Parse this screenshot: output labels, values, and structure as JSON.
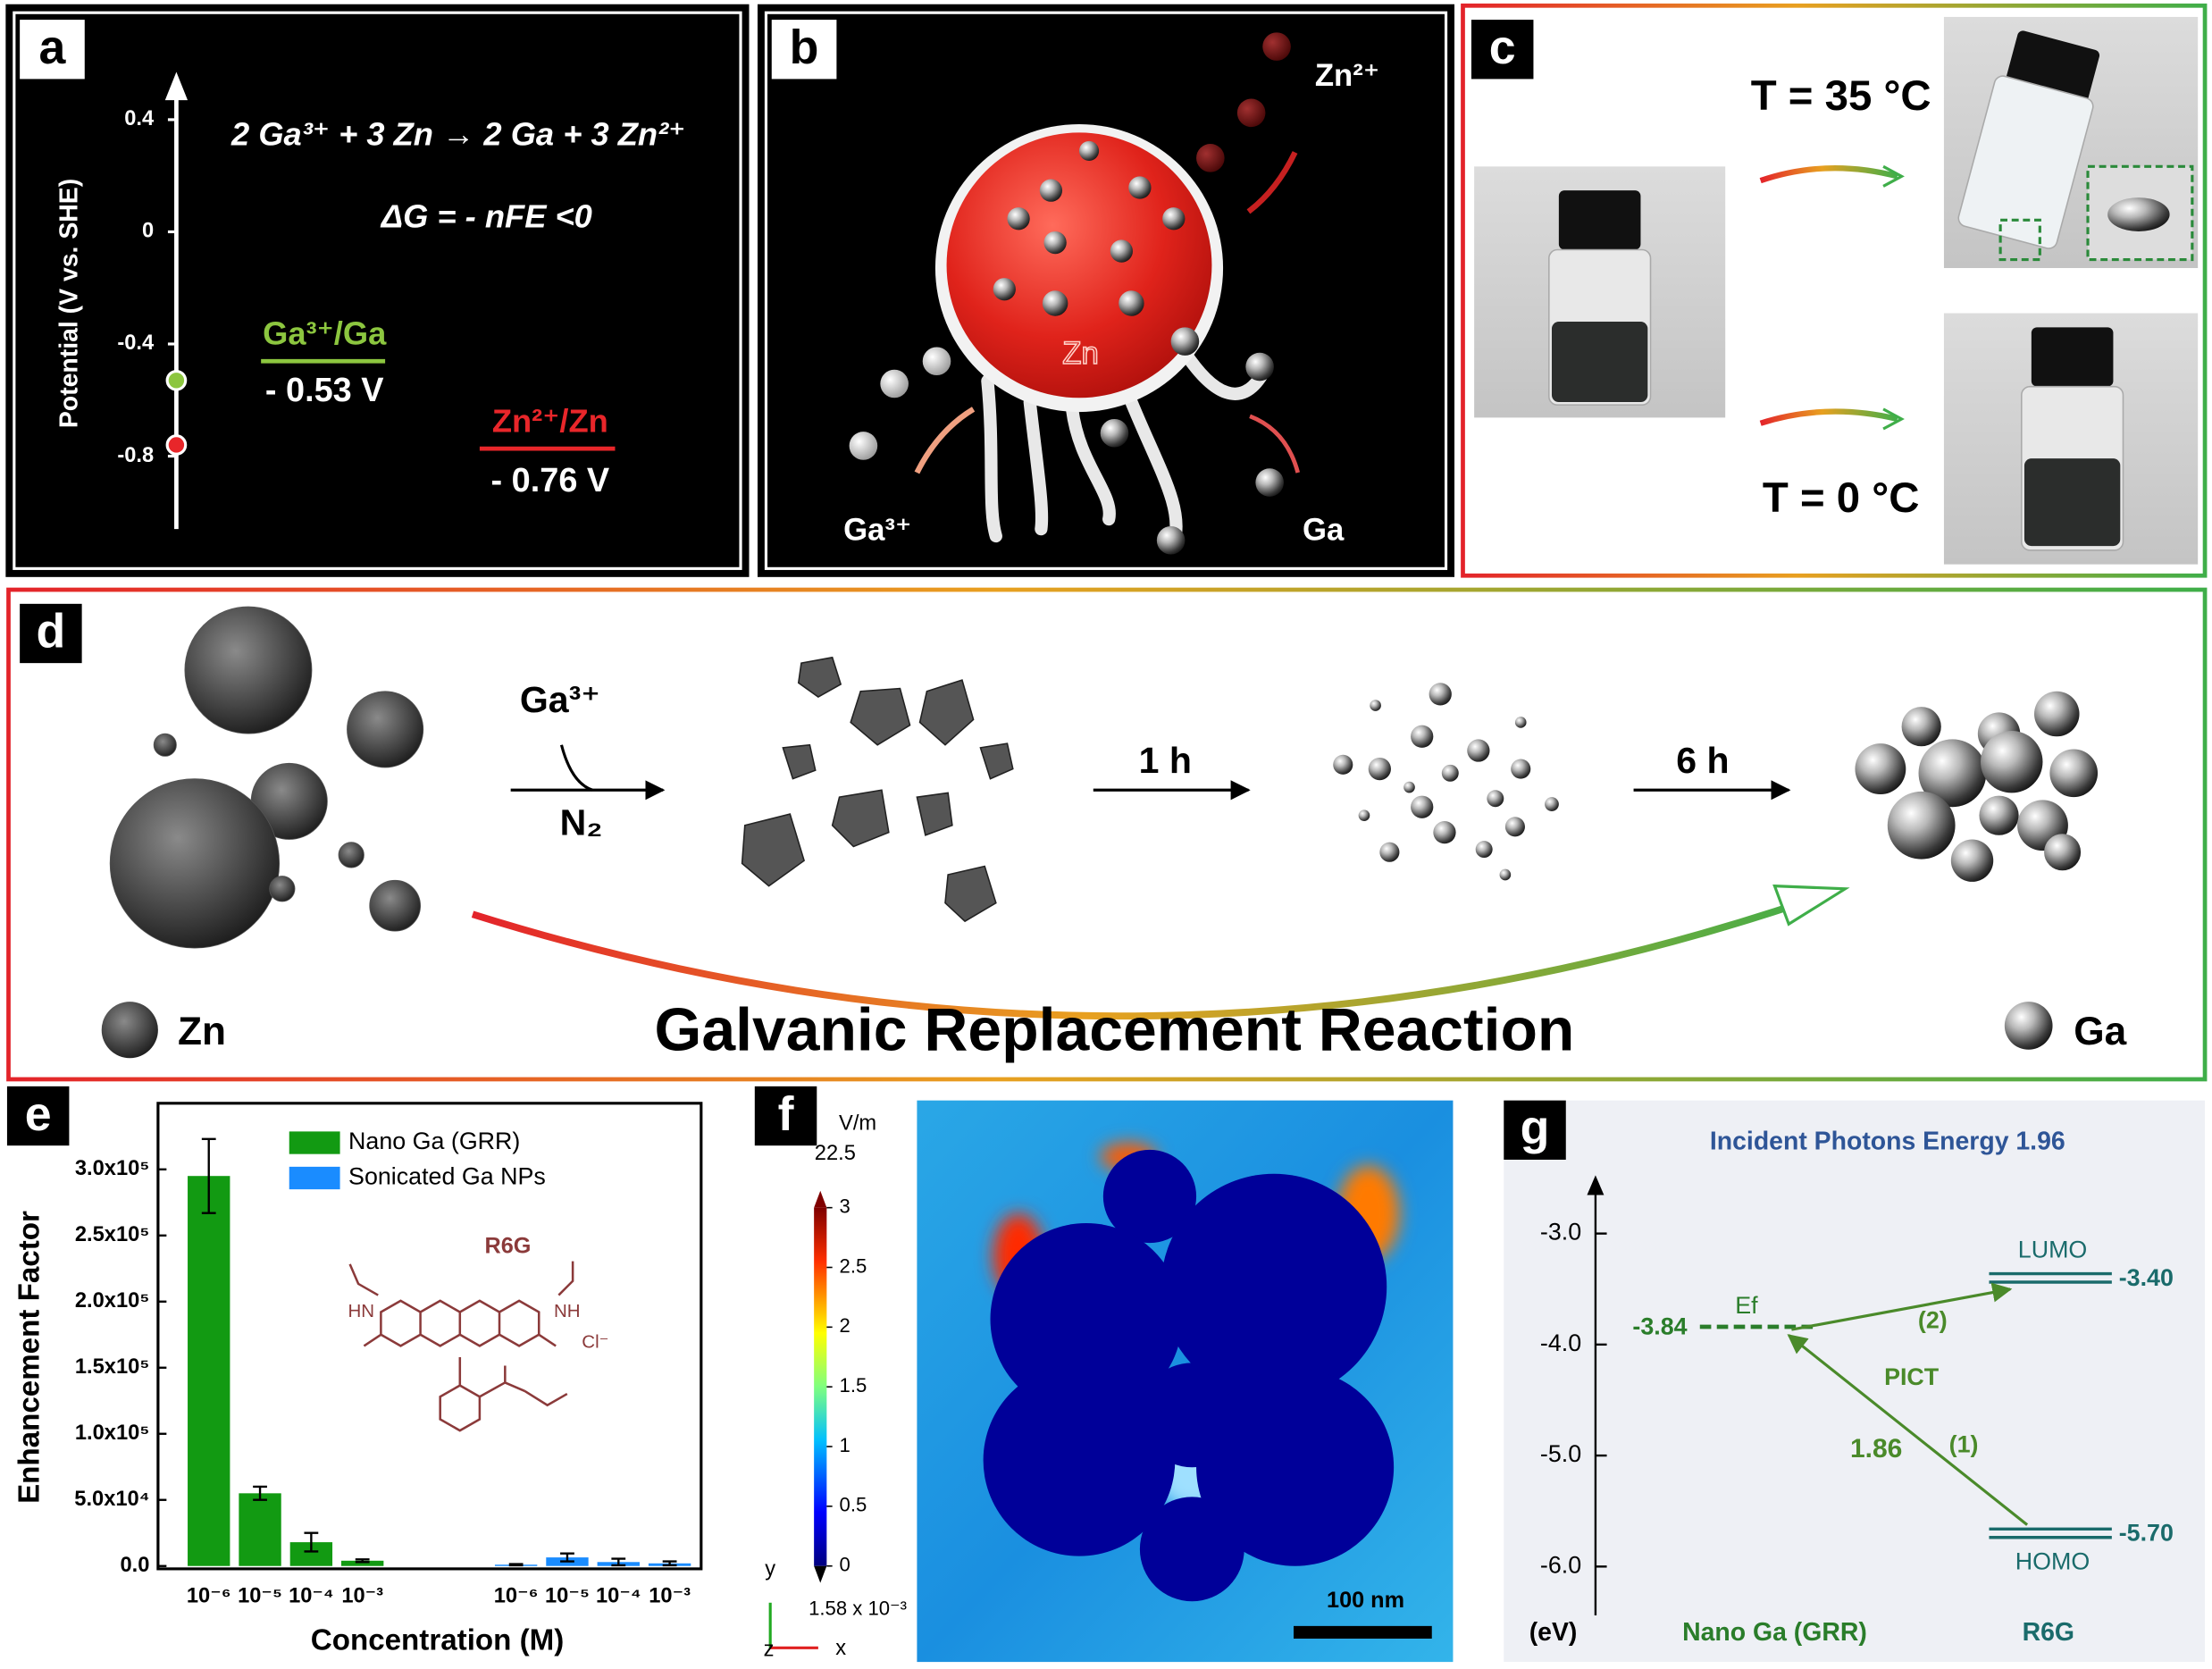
{
  "chart_data": [
    {
      "type": "potential-scale",
      "panel": "a",
      "ylabel": "Potential (V vs. SHE)",
      "ylim": [
        -1.06,
        0.55
      ],
      "yticks": [
        0.4,
        0,
        -0.4,
        -0.8
      ],
      "equation": "2 Ga³⁺ + 3 Zn → 2 Ga + 3 Zn²⁺",
      "free_energy": "ΔG = - nFE <0",
      "couples": [
        {
          "label": "Ga³⁺/Ga",
          "value": -0.53,
          "value_label": "- 0.53 V",
          "color": "#8cc63f"
        },
        {
          "label": "Zn²⁺/Zn",
          "value": -0.76,
          "value_label": "- 0.76 V",
          "color": "#e8262a"
        }
      ]
    },
    {
      "type": "bar",
      "panel": "e",
      "xlabel": "Concentration (M)",
      "ylabel": "Enhancement Factor",
      "categories": [
        "10⁻⁶",
        "10⁻⁵",
        "10⁻⁴",
        "10⁻³",
        null,
        null,
        "10⁻⁶",
        "10⁻⁵",
        "10⁻⁴",
        "10⁻³"
      ],
      "series": [
        {
          "name": "Nano Ga (GRR)",
          "color": "#129a12",
          "values": [
            295000,
            55000,
            18000,
            4000,
            null,
            null,
            null,
            null,
            null,
            null
          ],
          "errors": [
            28000,
            5000,
            7000,
            1000,
            null,
            null,
            null,
            null,
            null,
            null
          ]
        },
        {
          "name": "Sonicated Ga NPs",
          "color": "#1a8cff",
          "values": [
            null,
            null,
            null,
            null,
            null,
            null,
            1000,
            6500,
            3000,
            2000
          ],
          "errors": [
            null,
            null,
            null,
            null,
            null,
            null,
            500,
            3000,
            2500,
            1500
          ]
        }
      ],
      "ylim": [
        0,
        350000
      ],
      "yticks": [
        {
          "value": 0,
          "label": "0.0"
        },
        {
          "value": 50000,
          "label": "5.0x10⁴"
        },
        {
          "value": 100000,
          "label": "1.0x10⁵"
        },
        {
          "value": 150000,
          "label": "1.5x10⁵"
        },
        {
          "value": 200000,
          "label": "2.0x10⁵"
        },
        {
          "value": 250000,
          "label": "2.5x10⁵"
        },
        {
          "value": 300000,
          "label": "3.0x10⁵"
        }
      ],
      "molecule": {
        "name": "R6G",
        "atoms": [
          "HN",
          "NH",
          "Cl⁻"
        ]
      }
    },
    {
      "type": "energy-levels",
      "panel": "g",
      "title": "Incident Photons Energy 1.96",
      "ylim": [
        -6.44,
        -2.5
      ],
      "yticks": [
        {
          "value": -3,
          "label": "-3.0"
        },
        {
          "value": -4,
          "label": "-4.0"
        },
        {
          "value": -5,
          "label": "-5.0"
        },
        {
          "value": -6,
          "label": "-6.0"
        }
      ],
      "unit": "(eV)",
      "levels": [
        {
          "label": "Ef",
          "value": -3.84
        },
        {
          "label": "LUMO",
          "value": -3.4,
          "value_label": "-3.40"
        },
        {
          "label": "HOMO",
          "value": -5.7,
          "value_label": "-5.70"
        }
      ],
      "transitions": [
        {
          "label": "(2)"
        },
        {
          "label": "(1)",
          "energy": 1.86
        }
      ],
      "process": "PICT",
      "materials": [
        "Nano Ga (GRR)",
        "R6G"
      ]
    }
  ],
  "panels": {
    "b": {
      "label": "b",
      "product_ion": "Zn²⁺",
      "core": "Zn",
      "reactant_ion": "Ga³⁺",
      "product": "Ga"
    },
    "c": {
      "label": "c",
      "conditions": [
        "T = 35 °C",
        "T = 0 °C"
      ]
    },
    "d": {
      "label": "d",
      "reagent": "Ga³⁺",
      "atmosphere": "N₂",
      "steps": [
        "1 h",
        "6 h"
      ],
      "legend": [
        "Zn",
        "Ga"
      ],
      "title": "Galvanic Replacement Reaction"
    },
    "f": {
      "label": "f",
      "unit": "V/m",
      "max": 22.5,
      "min": 0.00158,
      "min_label": "1.58 x 10⁻³",
      "clim": [
        0,
        3
      ],
      "cticks": [
        3,
        2.5,
        2,
        1.5,
        1,
        0.5,
        0
      ],
      "scale_bar": "100 nm",
      "axes": [
        "y",
        "z",
        "x"
      ]
    }
  }
}
